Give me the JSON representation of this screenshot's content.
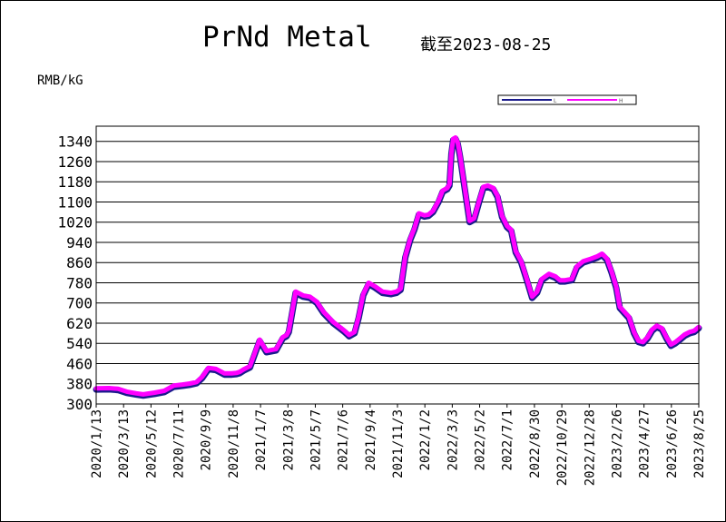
{
  "title": "PrNd Metal",
  "as_of": "截至2023-08-25",
  "unit_label": "RMB/kG",
  "colors": {
    "low": "#1a1a8c",
    "high": "#ff00ff",
    "grid": "#000000"
  },
  "legend": [
    {
      "key": "low",
      "label": "L"
    },
    {
      "key": "high",
      "label": "H"
    }
  ],
  "chart_data": {
    "type": "line",
    "title": "PrNd Metal",
    "ylabel": "RMB/kG",
    "ylim": [
      300,
      1400
    ],
    "yticks": [
      300,
      380,
      460,
      540,
      620,
      700,
      780,
      860,
      940,
      1020,
      1100,
      1180,
      1260,
      1340
    ],
    "xlim": [
      "2020-01-13",
      "2023-08-25"
    ],
    "xticks": [
      "2020/1/13",
      "2020/3/13",
      "2020/5/12",
      "2020/7/11",
      "2020/9/9",
      "2020/11/8",
      "2021/1/7",
      "2021/3/8",
      "2021/5/7",
      "2021/7/6",
      "2021/9/4",
      "2021/11/3",
      "2022/1/2",
      "2022/3/3",
      "2022/5/2",
      "2022/7/1",
      "2022/8/30",
      "2022/10/29",
      "2022/12/28",
      "2023/2/26",
      "2023/4/27",
      "2023/6/26",
      "2023/8/25"
    ],
    "grid": "horizontal",
    "legend_position": "top-right",
    "series": [
      {
        "name": "L",
        "color": "#1a1a8c",
        "x": [
          "2020-01-13",
          "2020-02-10",
          "2020-03-01",
          "2020-03-20",
          "2020-04-10",
          "2020-04-25",
          "2020-05-20",
          "2020-06-10",
          "2020-07-01",
          "2020-07-20",
          "2020-08-05",
          "2020-08-20",
          "2020-09-01",
          "2020-09-15",
          "2020-10-01",
          "2020-10-20",
          "2020-11-05",
          "2020-11-15",
          "2020-11-22",
          "2020-12-01",
          "2020-12-15",
          "2021-01-05",
          "2021-01-20",
          "2021-02-10",
          "2021-02-25",
          "2021-03-05",
          "2021-03-10",
          "2021-03-25",
          "2021-04-10",
          "2021-04-25",
          "2021-05-10",
          "2021-05-25",
          "2021-06-15",
          "2021-07-01",
          "2021-07-10",
          "2021-07-20",
          "2021-08-01",
          "2021-08-10",
          "2021-08-20",
          "2021-09-01",
          "2021-09-15",
          "2021-10-01",
          "2021-10-20",
          "2021-11-01",
          "2021-11-10",
          "2021-11-20",
          "2021-12-01",
          "2021-12-10",
          "2021-12-20",
          "2022-01-01",
          "2022-01-10",
          "2022-01-20",
          "2022-02-01",
          "2022-02-10",
          "2022-02-20",
          "2022-02-25",
          "2022-03-01",
          "2022-03-05",
          "2022-03-10",
          "2022-03-15",
          "2022-03-20",
          "2022-04-01",
          "2022-04-10",
          "2022-04-20",
          "2022-05-01",
          "2022-05-10",
          "2022-05-20",
          "2022-06-01",
          "2022-06-10",
          "2022-06-20",
          "2022-07-01",
          "2022-07-10",
          "2022-07-20",
          "2022-08-01",
          "2022-08-15",
          "2022-08-25",
          "2022-09-05",
          "2022-09-15",
          "2022-10-01",
          "2022-10-15",
          "2022-10-25",
          "2022-11-05",
          "2022-11-20",
          "2022-12-01",
          "2022-12-15",
          "2023-01-01",
          "2023-01-15",
          "2023-01-25",
          "2023-02-05",
          "2023-02-15",
          "2023-02-25",
          "2023-03-05",
          "2023-03-15",
          "2023-03-25",
          "2023-04-05",
          "2023-04-15",
          "2023-04-25",
          "2023-05-05",
          "2023-05-15",
          "2023-05-25",
          "2023-06-05",
          "2023-06-15",
          "2023-06-25",
          "2023-07-05",
          "2023-07-15",
          "2023-07-25",
          "2023-08-05",
          "2023-08-15",
          "2023-08-25"
        ],
        "y": [
          357,
          358,
          355,
          344,
          337,
          333,
          340,
          347,
          368,
          372,
          376,
          382,
          402,
          438,
          434,
          416,
          416,
          418,
          422,
          432,
          445,
          550,
          505,
          512,
          560,
          568,
          585,
          740,
          725,
          720,
          700,
          660,
          620,
          598,
          585,
          568,
          580,
          640,
          730,
          775,
          760,
          740,
          735,
          740,
          752,
          880,
          950,
          990,
          1050,
          1042,
          1045,
          1060,
          1100,
          1140,
          1150,
          1165,
          1290,
          1345,
          1350,
          1330,
          1280,
          1130,
          1020,
          1030,
          1100,
          1155,
          1160,
          1150,
          1120,
          1040,
          1000,
          985,
          900,
          860,
          780,
          720,
          740,
          790,
          810,
          800,
          785,
          785,
          790,
          840,
          860,
          870,
          880,
          890,
          870,
          820,
          760,
          680,
          660,
          640,
          580,
          545,
          540,
          560,
          590,
          605,
          595,
          560,
          530,
          540,
          555,
          570,
          580,
          585,
          600
        ]
      },
      {
        "name": "H",
        "color": "#ff00ff",
        "x": [
          "2020-01-13",
          "2020-02-10",
          "2020-03-01",
          "2020-03-20",
          "2020-04-10",
          "2020-04-25",
          "2020-05-20",
          "2020-06-10",
          "2020-07-01",
          "2020-07-20",
          "2020-08-05",
          "2020-08-20",
          "2020-09-01",
          "2020-09-15",
          "2020-10-01",
          "2020-10-20",
          "2020-11-05",
          "2020-11-15",
          "2020-11-22",
          "2020-12-01",
          "2020-12-15",
          "2021-01-05",
          "2021-01-20",
          "2021-02-10",
          "2021-02-25",
          "2021-03-05",
          "2021-03-10",
          "2021-03-25",
          "2021-04-10",
          "2021-04-25",
          "2021-05-10",
          "2021-05-25",
          "2021-06-15",
          "2021-07-01",
          "2021-07-10",
          "2021-07-20",
          "2021-08-01",
          "2021-08-10",
          "2021-08-20",
          "2021-09-01",
          "2021-09-15",
          "2021-10-01",
          "2021-10-20",
          "2021-11-01",
          "2021-11-10",
          "2021-11-20",
          "2021-12-01",
          "2021-12-10",
          "2021-12-20",
          "2022-01-01",
          "2022-01-10",
          "2022-01-20",
          "2022-02-01",
          "2022-02-10",
          "2022-02-20",
          "2022-02-25",
          "2022-03-01",
          "2022-03-05",
          "2022-03-10",
          "2022-03-15",
          "2022-03-20",
          "2022-04-01",
          "2022-04-10",
          "2022-04-20",
          "2022-05-01",
          "2022-05-10",
          "2022-05-20",
          "2022-06-01",
          "2022-06-10",
          "2022-06-20",
          "2022-07-01",
          "2022-07-10",
          "2022-07-20",
          "2022-08-01",
          "2022-08-15",
          "2022-08-25",
          "2022-09-05",
          "2022-09-15",
          "2022-10-01",
          "2022-10-15",
          "2022-10-25",
          "2022-11-05",
          "2022-11-20",
          "2022-12-01",
          "2022-12-15",
          "2023-01-01",
          "2023-01-15",
          "2023-01-25",
          "2023-02-05",
          "2023-02-15",
          "2023-02-25",
          "2023-03-05",
          "2023-03-15",
          "2023-03-25",
          "2023-04-05",
          "2023-04-15",
          "2023-04-25",
          "2023-05-05",
          "2023-05-15",
          "2023-05-25",
          "2023-06-05",
          "2023-06-15",
          "2023-06-25",
          "2023-07-05",
          "2023-07-15",
          "2023-07-25",
          "2023-08-05",
          "2023-08-15",
          "2023-08-25"
        ],
        "y": [
          362,
          363,
          360,
          349,
          342,
          338,
          345,
          352,
          373,
          377,
          381,
          387,
          407,
          443,
          439,
          421,
          421,
          423,
          427,
          437,
          450,
          555,
          510,
          517,
          565,
          573,
          590,
          745,
          730,
          725,
          705,
          665,
          625,
          603,
          590,
          573,
          585,
          645,
          735,
          780,
          765,
          745,
          740,
          745,
          757,
          885,
          955,
          995,
          1055,
          1047,
          1050,
          1065,
          1105,
          1145,
          1155,
          1170,
          1295,
          1350,
          1355,
          1335,
          1285,
          1135,
          1025,
          1035,
          1105,
          1160,
          1165,
          1155,
          1125,
          1045,
          1005,
          990,
          905,
          865,
          785,
          725,
          745,
          795,
          815,
          805,
          790,
          790,
          795,
          845,
          865,
          875,
          885,
          895,
          875,
          825,
          765,
          685,
          665,
          645,
          585,
          550,
          545,
          565,
          595,
          610,
          600,
          565,
          535,
          545,
          560,
          575,
          585,
          590,
          605
        ]
      }
    ]
  }
}
